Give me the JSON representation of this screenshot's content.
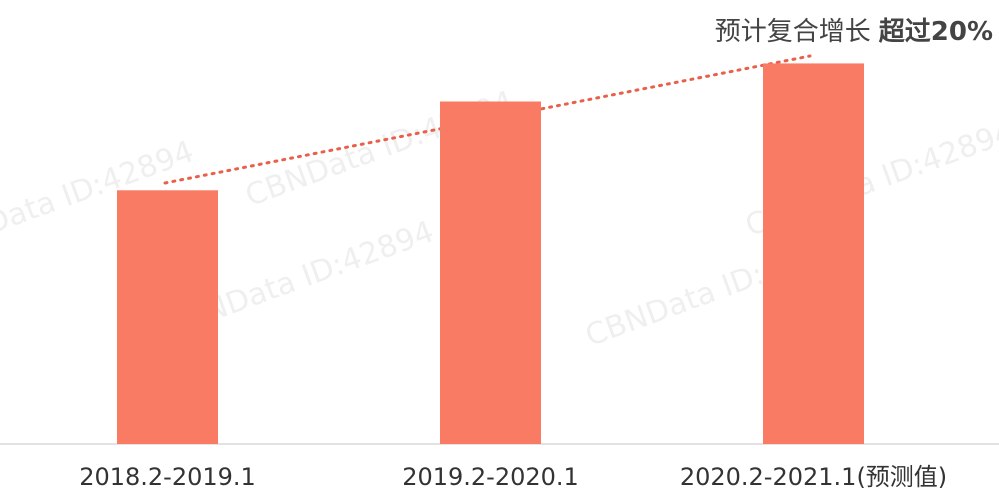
{
  "chart_data": {
    "type": "bar",
    "categories": [
      "2018.2-2019.1",
      "2019.2-2020.1",
      "2020.2-2021.1(预测值)"
    ],
    "values": [
      100,
      135,
      150
    ],
    "color": "#f97b63",
    "ylim": [
      0,
      175
    ],
    "annotation": {
      "text": "预计复合增长",
      "emphasis": "超过20%"
    },
    "watermark": "CBNData ID:42894"
  }
}
